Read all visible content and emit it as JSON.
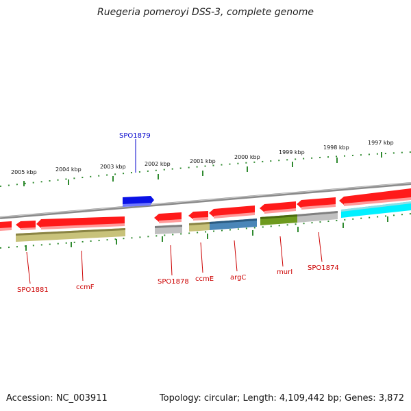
{
  "title": "Ruegeria pomeroyi DSS-3, complete genome",
  "colors": {
    "ruler": "#2f8a2f",
    "backbone": "#8c8c8c",
    "red": "#ff1a1a",
    "blue": "#0a12e6",
    "olive": "#c8c27a",
    "grey": "#c0c0c0",
    "steel": "#4a86b8",
    "green": "#6e9a1e",
    "cyan": "#00f0ff",
    "label_red": "#cc0000",
    "label_blue": "#0000cc"
  },
  "kbp_labels": [
    {
      "text": "2005 kbp"
    },
    {
      "text": "2004 kbp"
    },
    {
      "text": "2003 kbp"
    },
    {
      "text": "2002 kbp"
    },
    {
      "text": "2001 kbp"
    },
    {
      "text": "2000 kbp"
    },
    {
      "text": "1999 kbp"
    },
    {
      "text": "1998 kbp"
    },
    {
      "text": "1997 kbp"
    }
  ],
  "gene_labels": [
    {
      "text": "SPO1879",
      "color": "label_blue"
    },
    {
      "text": "SPO1881",
      "color": "label_red"
    },
    {
      "text": "ccmF",
      "color": "label_red"
    },
    {
      "text": "SPO1878",
      "color": "label_red"
    },
    {
      "text": "ccmE",
      "color": "label_red"
    },
    {
      "text": "argC",
      "color": "label_red"
    },
    {
      "text": "murI",
      "color": "label_red"
    },
    {
      "text": "SPO1874",
      "color": "label_red"
    }
  ],
  "footer": {
    "accession": "Accession: NC_003911",
    "summary": "Topology: circular; Length: 4,109,442 bp; Genes: 3,872"
  }
}
